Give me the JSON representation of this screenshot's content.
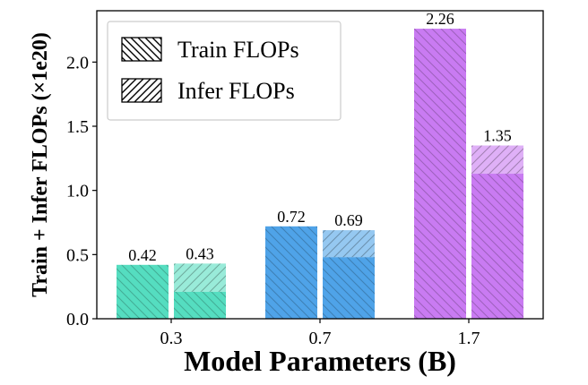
{
  "chart_data": {
    "type": "bar",
    "xlabel": "Model Parameters (B)",
    "ylabel": "Train + Infer FLOPs (×1e20)",
    "ylim": [
      0,
      2.4
    ],
    "yticks": [
      "0.0",
      "0.5",
      "1.0",
      "1.5",
      "2.0"
    ],
    "categories": [
      "0.3",
      "0.7",
      "1.7"
    ],
    "category_colors": [
      "#55DDC0",
      "#4FA3E8",
      "#C97BF2"
    ],
    "legend": {
      "position": "top-left",
      "entries": [
        "Train FLOPs",
        "Infer FLOPs"
      ]
    },
    "series": [
      {
        "totals": [
          0.42,
          0.72,
          2.26
        ],
        "train": [
          0.42,
          0.72,
          2.26
        ],
        "infer": [
          0.0,
          0.0,
          0.0
        ],
        "labels": [
          "0.42",
          "0.72",
          "2.26"
        ]
      },
      {
        "totals": [
          0.43,
          0.69,
          1.35
        ],
        "train": [
          0.21,
          0.48,
          1.13
        ],
        "infer": [
          0.22,
          0.21,
          0.22
        ],
        "labels": [
          "0.43",
          "0.69",
          "1.35"
        ]
      }
    ]
  }
}
